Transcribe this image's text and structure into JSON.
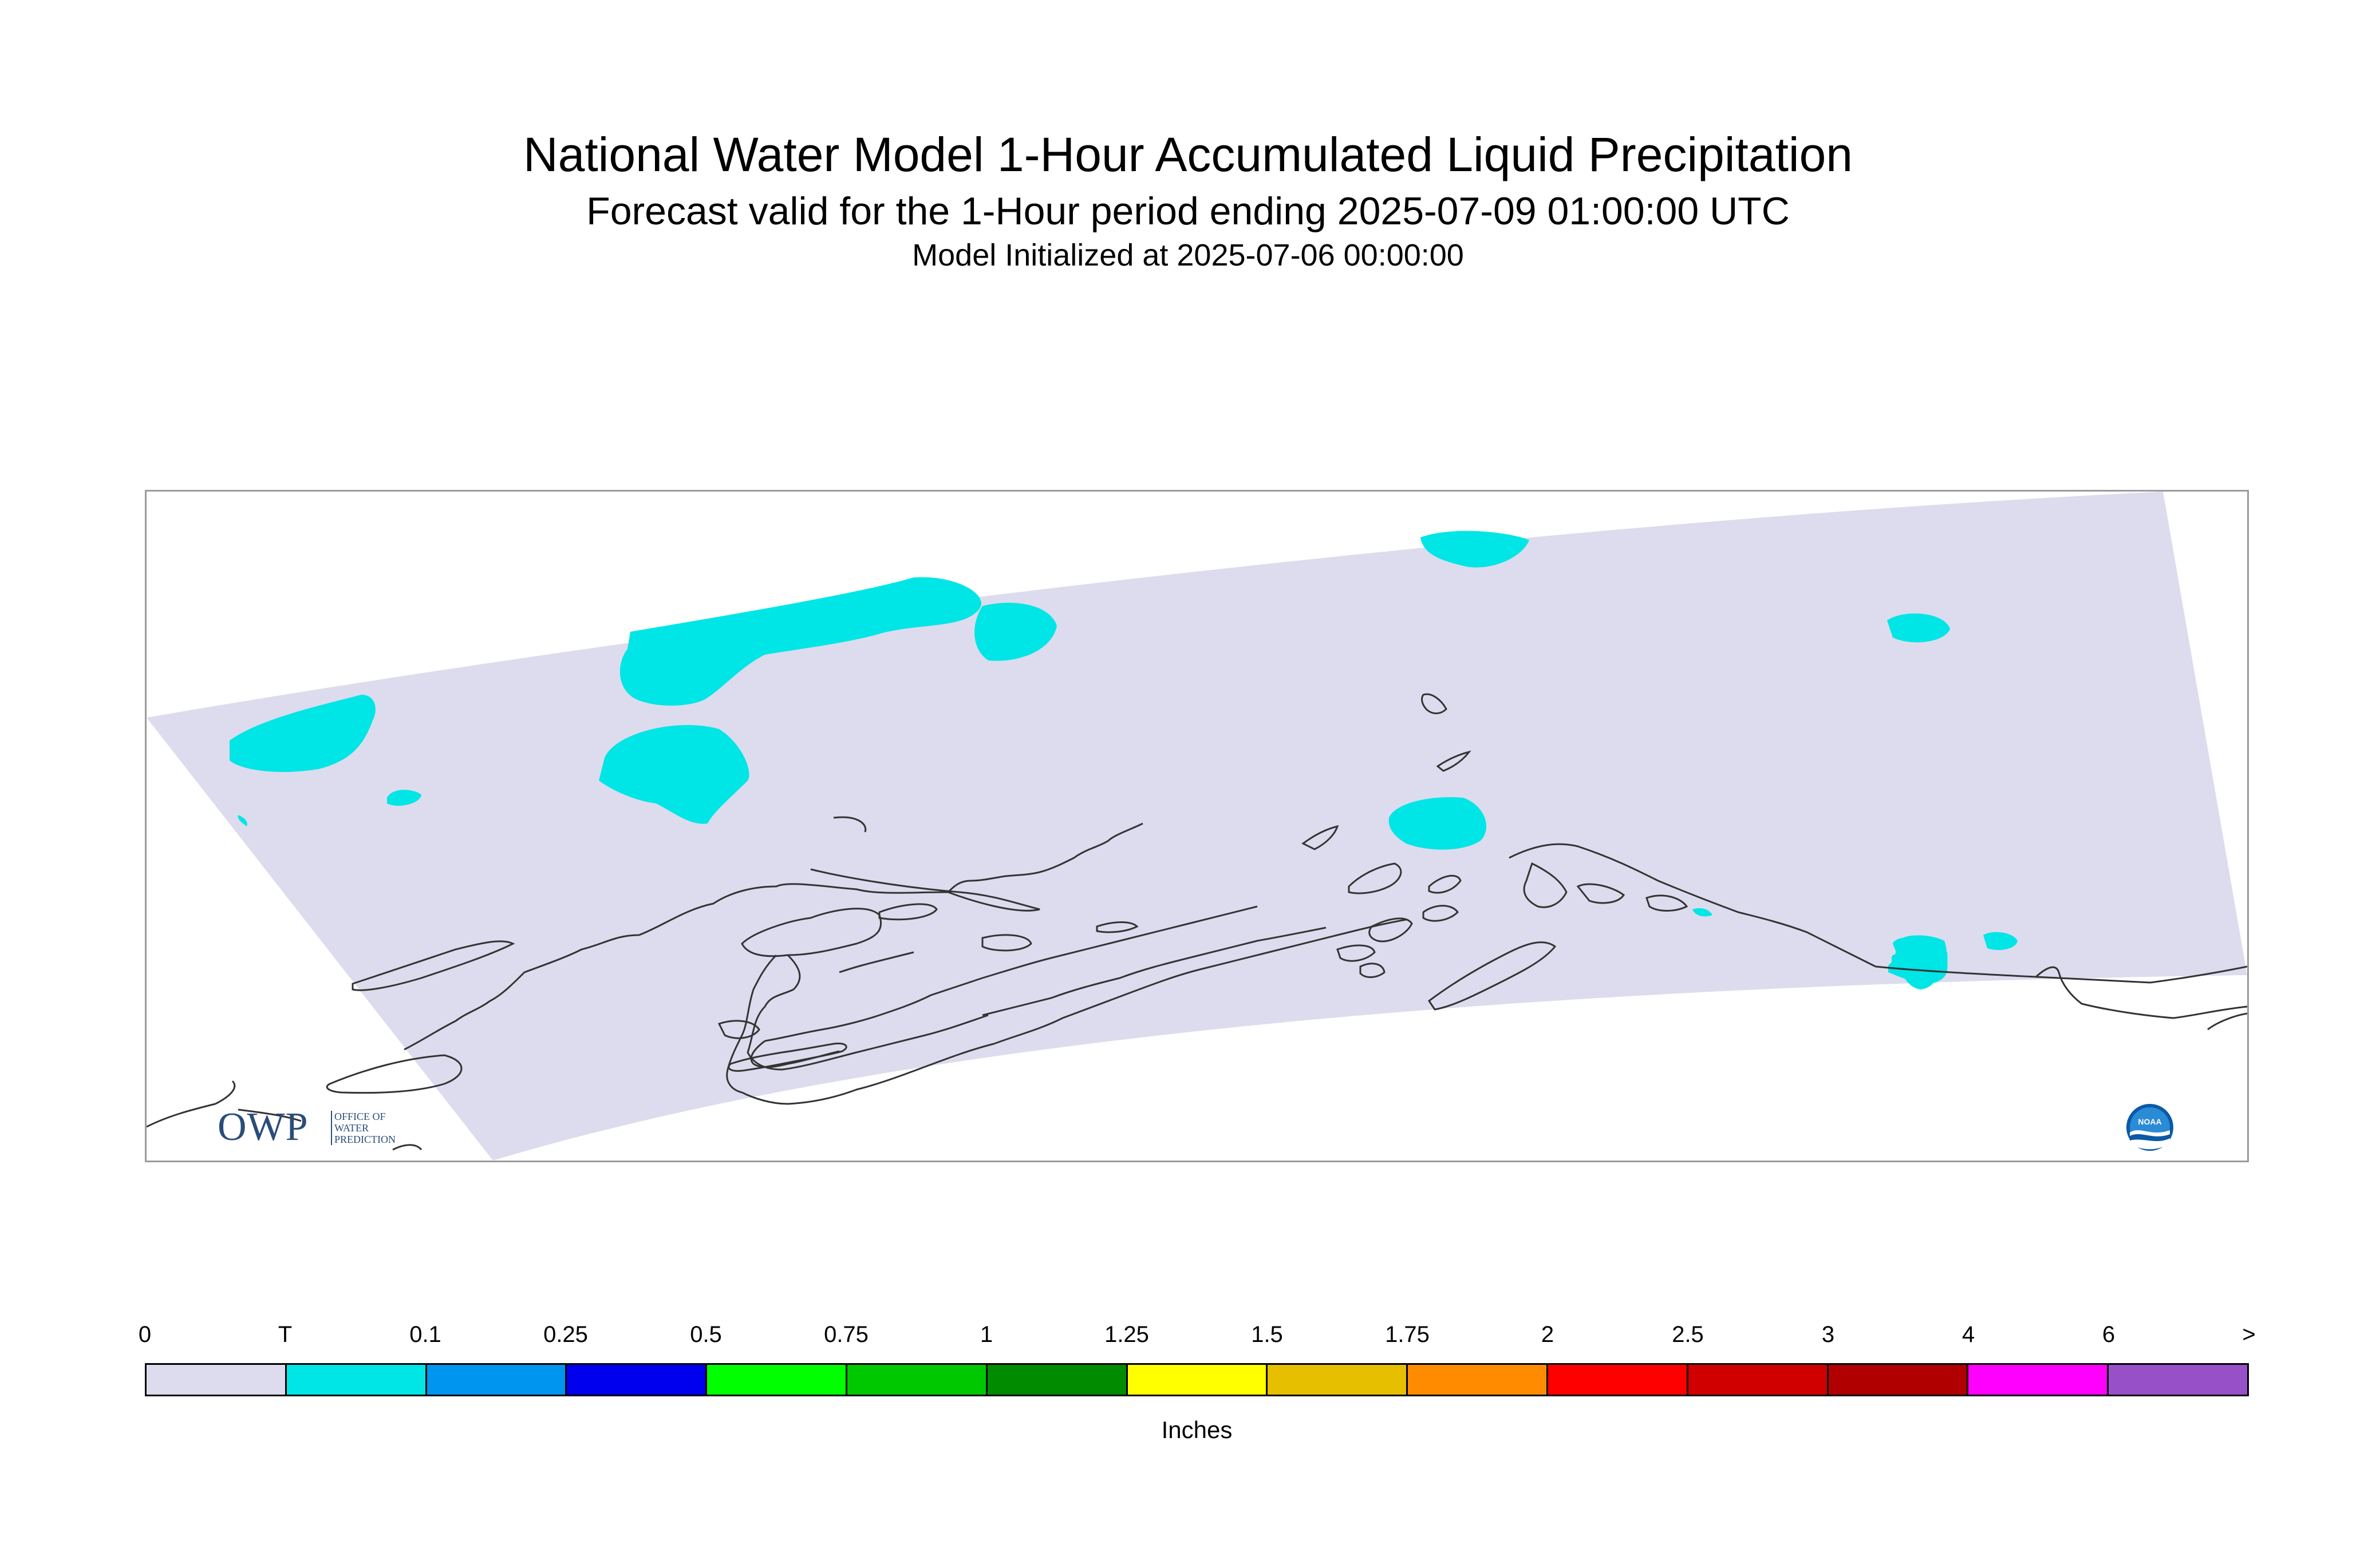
{
  "title": "National Water Model 1-Hour Accumulated Liquid Precipitation",
  "subtitle": "Forecast valid for the 1-Hour period ending 2025-07-09 01:00:00 UTC",
  "init_line": "Model Initialized at 2025-07-06 00:00:00",
  "logos": {
    "owp_letters": "OWP",
    "owp_lines": [
      "OFFICE OF",
      "WATER",
      "PREDICTION"
    ],
    "noaa_text": "NOAA"
  },
  "legend": {
    "units": "Inches",
    "labels": [
      "0",
      "T",
      "0.1",
      "0.25",
      "0.5",
      "0.75",
      "1",
      "1.25",
      "1.5",
      "1.75",
      "2",
      "2.5",
      "3",
      "4",
      "6",
      ">"
    ],
    "colors": [
      "#dcdcee",
      "#00e5e5",
      "#0095ee",
      "#0000ee",
      "#00ff00",
      "#00c800",
      "#008b00",
      "#ffff00",
      "#e5bf00",
      "#ff8c00",
      "#ff0000",
      "#d10000",
      "#b00000",
      "#ff00ff",
      "#9850c8"
    ]
  },
  "map": {
    "domain_fill": "#dcdcee",
    "trace_fill": "#00e5e5",
    "coast_color": "#333333"
  }
}
